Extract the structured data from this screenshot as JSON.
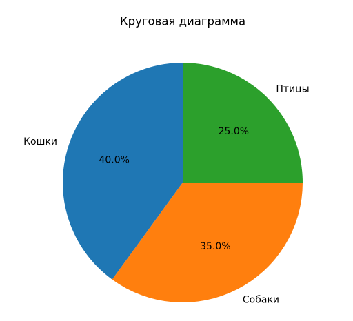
{
  "chart_data": {
    "type": "pie",
    "title": "Круговая диаграмма",
    "categories": [
      "Кошки",
      "Собаки",
      "Птицы"
    ],
    "values": [
      40,
      35,
      25
    ],
    "value_labels": [
      "40.0%",
      "35.0%",
      "25.0%"
    ],
    "colors": [
      "#1f77b4",
      "#ff7f0e",
      "#2ca02c"
    ],
    "start_angle": 90,
    "counterclock": true
  }
}
